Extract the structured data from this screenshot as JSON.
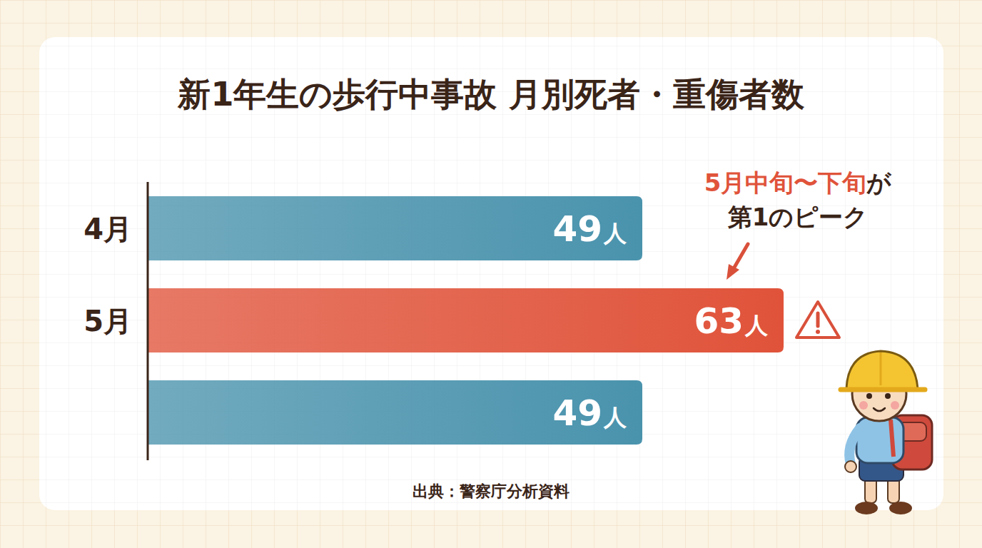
{
  "chart_data": {
    "type": "bar",
    "orientation": "horizontal",
    "title": "新1年生の歩行中事故 月別死者・重傷者数",
    "categories": [
      "4月",
      "5月",
      null
    ],
    "values": [
      49,
      63,
      49
    ],
    "value_labels": [
      "49人",
      "63人",
      "49人"
    ],
    "colors": [
      "#4a93ad",
      "#e0533a",
      "#4a93ad"
    ],
    "xlim": [
      0,
      63
    ],
    "data_labels": true,
    "tick_labels": "y",
    "annotation": [
      "5月中旬〜下旬",
      "が",
      "第1のピーク"
    ],
    "source": "出典：警察庁分析資料"
  }
}
